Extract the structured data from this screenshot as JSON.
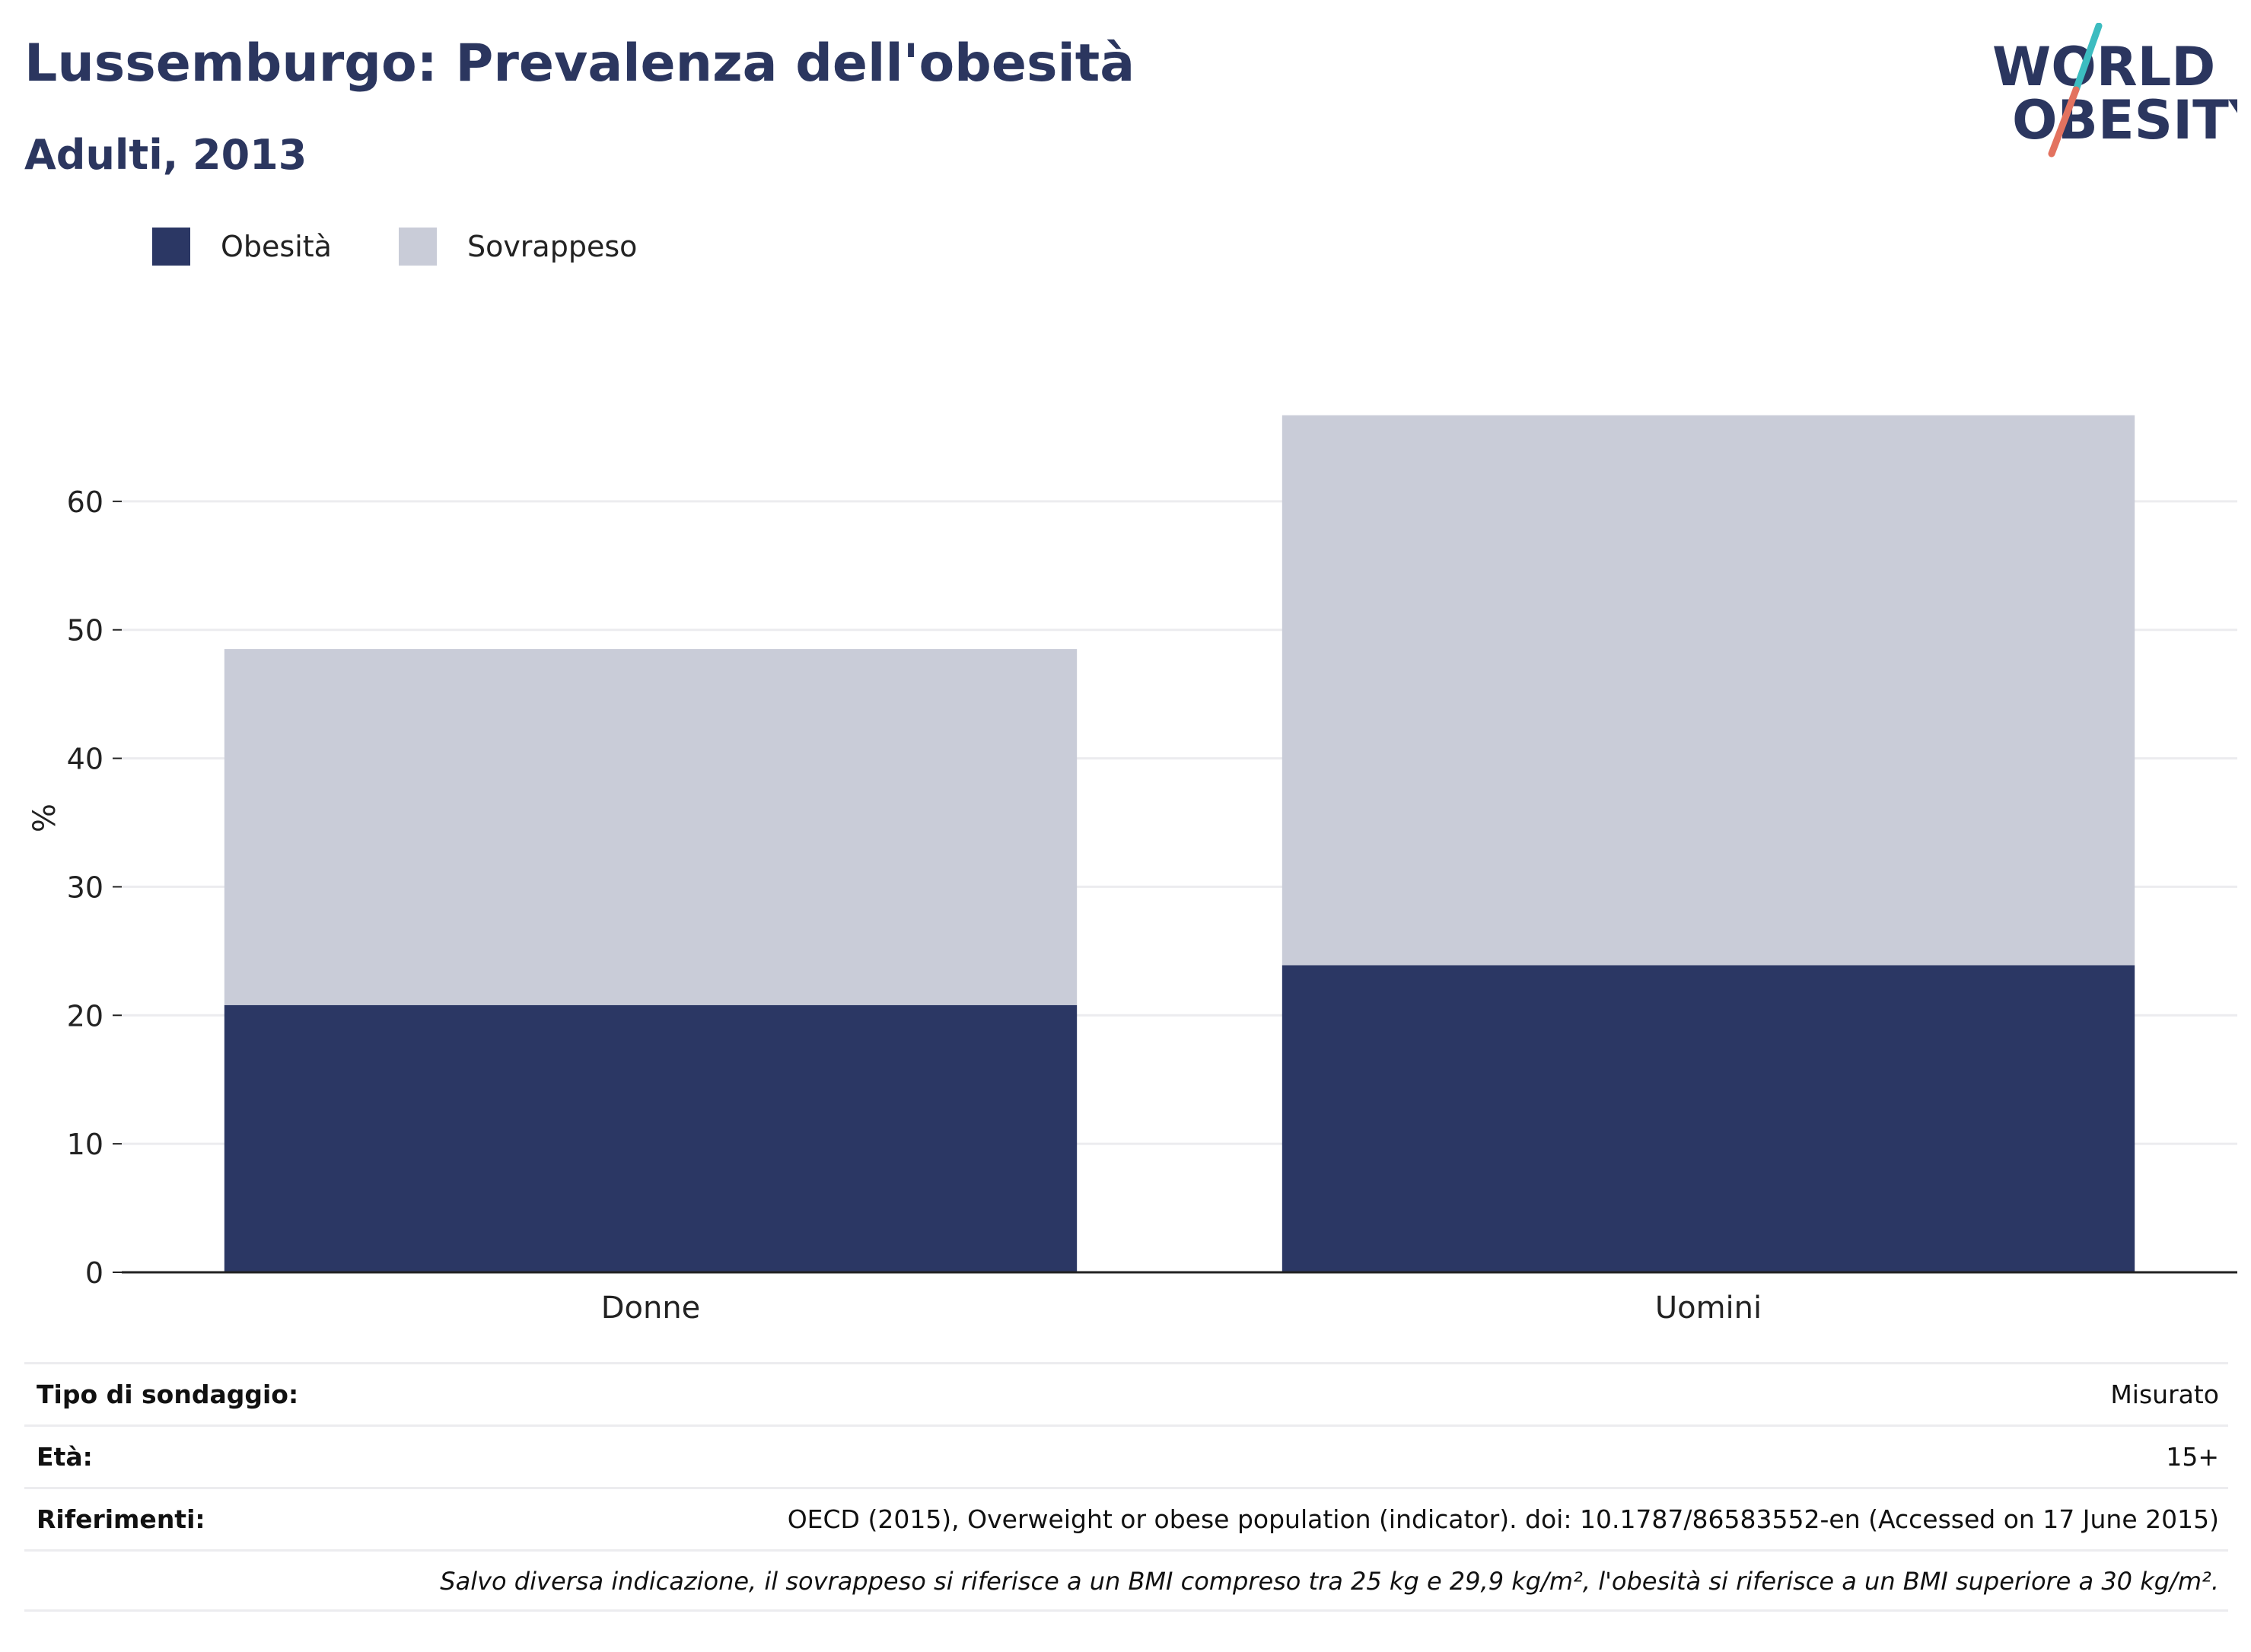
{
  "header": {
    "title": "Lussemburgo: Prevalenza dell'obesità",
    "subtitle": "Adulti, 2013"
  },
  "logo": {
    "line1": "WORLD",
    "line2": "OBESITY",
    "slash_colors": [
      "#3cbcc0",
      "#e3725f"
    ]
  },
  "colors": {
    "obesity": "#2b3764",
    "overweight": "#c9ccd8",
    "text_dark": "#2b365f",
    "grid": "#ececef",
    "axis": "#222222"
  },
  "legend": [
    {
      "label": "Obesità",
      "color": "#2b3764"
    },
    {
      "label": "Sovrappeso",
      "color": "#c9ccd8"
    }
  ],
  "chart_data": {
    "type": "bar",
    "stacked": true,
    "categories": [
      "Donne",
      "Uomini"
    ],
    "series": [
      {
        "name": "Obesità",
        "values": [
          20.8,
          23.9
        ],
        "color": "#2b3764"
      },
      {
        "name": "Sovrappeso",
        "values": [
          27.7,
          42.8
        ],
        "color": "#c9ccd8"
      }
    ],
    "ylabel": "%",
    "xlabel": "",
    "ylim": [
      0,
      70
    ],
    "yticks": [
      0,
      10,
      20,
      30,
      40,
      50,
      60
    ],
    "grid": true,
    "legend_position": "top-left"
  },
  "info": {
    "rows": [
      {
        "label": "Tipo di sondaggio:",
        "value": "Misurato"
      },
      {
        "label": "Età:",
        "value": "15+"
      },
      {
        "label": "Riferimenti:",
        "value": "OECD (2015), Overweight or obese population (indicator). doi: 10.1787/86583552-en (Accessed on 17 June 2015)"
      }
    ],
    "note": "Salvo diversa indicazione, il sovrappeso si riferisce a un BMI compreso tra 25 kg e 29,9 kg/m², l'obesità si riferisce a un BMI superiore a 30 kg/m²."
  }
}
